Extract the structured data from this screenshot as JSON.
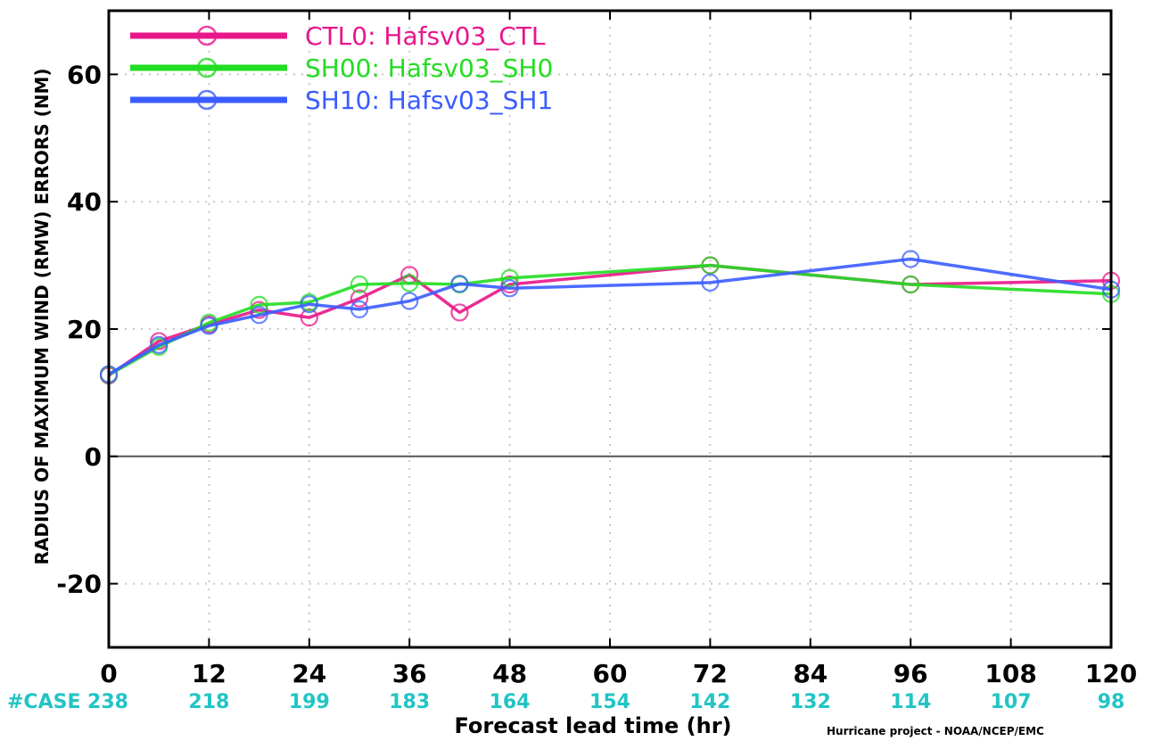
{
  "chart_data": {
    "type": "line",
    "title": "",
    "xlabel": "Forecast lead time (hr)",
    "ylabel": "RADIUS OF MAXIMUM WIND (RMW) ERRORS (NM)",
    "xlim": [
      0,
      120
    ],
    "ylim": [
      -30,
      70
    ],
    "x_ticks": [
      0,
      12,
      24,
      36,
      48,
      60,
      72,
      84,
      96,
      108,
      120
    ],
    "y_ticks": [
      -20,
      0,
      20,
      40,
      60
    ],
    "grid": true,
    "legend_position": "top-left",
    "case_prefix": "#CASE",
    "case_counts": [
      "238",
      "218",
      "199",
      "183",
      "164",
      "154",
      "142",
      "132",
      "114",
      "107",
      "98"
    ],
    "credit": "Hurricane project - NOAA/NCEP/EMC",
    "series": [
      {
        "name": "CTL0: Hafsv03_CTL",
        "color": "#e8168a",
        "x": [
          0,
          6,
          12,
          18,
          24,
          30,
          36,
          42,
          48,
          72,
          96,
          120
        ],
        "y": [
          12.7,
          18.1,
          20.7,
          23.0,
          21.8,
          24.8,
          28.5,
          22.6,
          27.0,
          30.0,
          27.0,
          27.6
        ]
      },
      {
        "name": "SH00: Hafsv03_SH0",
        "color": "#22dd22",
        "x": [
          0,
          6,
          12,
          18,
          24,
          30,
          36,
          42,
          48,
          72,
          96,
          120
        ],
        "y": [
          12.8,
          17.2,
          21.0,
          23.8,
          24.2,
          27.0,
          27.2,
          27.0,
          28.0,
          30.0,
          27.0,
          25.5
        ]
      },
      {
        "name": "SH10: Hafsv03_SH1",
        "color": "#3a5cff",
        "x": [
          0,
          6,
          12,
          18,
          24,
          30,
          36,
          42,
          48,
          72,
          96,
          120
        ],
        "y": [
          12.9,
          17.5,
          20.5,
          22.2,
          23.9,
          23.1,
          24.4,
          27.1,
          26.4,
          27.3,
          31.0,
          26.2
        ]
      }
    ]
  }
}
